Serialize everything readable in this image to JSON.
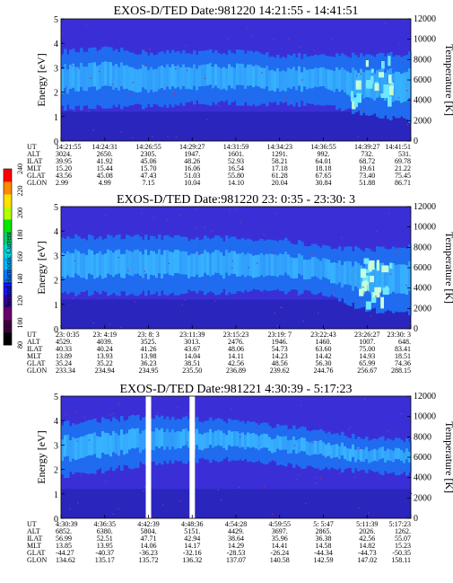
{
  "colors": {
    "deep": "#3a2fd6",
    "band": "#1f6cf0",
    "bright": "#38b4ff",
    "cyan": "#6fe8ff",
    "pale": "#c6ffd8",
    "dark_low": "#1e1ea8",
    "speck": "#8a3a8a",
    "colorbar": [
      "#000000",
      "#3a003a",
      "#6a006a",
      "#33009a",
      "#1515ff",
      "#0078ff",
      "#00b7ff",
      "#00d8d8",
      "#00cf6a",
      "#00e800",
      "#b4ff00",
      "#ffe000",
      "#ff8a00",
      "#ff0000"
    ]
  },
  "colorbar": {
    "label": "Second Harmonic Current",
    "ticks": [
      "240",
      "220",
      "200",
      "180",
      "160",
      "140",
      "120",
      "100",
      "80"
    ]
  },
  "chart_data": [
    {
      "type": "heatmap",
      "title": "EXOS-D/TED   Date:981220   14:21:55 - 14:41:51",
      "ylabel": "Energy [eV]",
      "y2label": "Temperature [K]",
      "ylim": [
        0,
        5
      ],
      "y2lim": [
        0,
        12000
      ],
      "yticks": [
        "0",
        "1",
        "2",
        "3",
        "4",
        "5"
      ],
      "y2ticks": [
        "0",
        "2000",
        "4000",
        "6000",
        "8000",
        "10000",
        "12000"
      ],
      "table_rows": [
        "UT",
        "ALT",
        "ILAT",
        "MLT",
        "GLAT",
        "GLON"
      ],
      "table_cols": [
        [
          "14:21:55",
          "3024.",
          "39.95",
          "15.20",
          "43.56",
          "2.99"
        ],
        [
          "14:24:31",
          "2650.",
          "41.92",
          "15.44",
          "45.08",
          "4.99"
        ],
        [
          "14:26:55",
          "2305.",
          "45.06",
          "15.70",
          "47.43",
          "7.15"
        ],
        [
          "14:29:27",
          "1947.",
          "48.26",
          "16.06",
          "51.03",
          "10.04"
        ],
        [
          "14:31:59",
          "1601.",
          "52.93",
          "16.54",
          "55.80",
          "14.10"
        ],
        [
          "14:34:23",
          "1291.",
          "58.21",
          "17.18",
          "61.28",
          "20.04"
        ],
        [
          "14:36:55",
          "992.",
          "64.01",
          "18.18",
          "67.65",
          "30.84"
        ],
        [
          "14:39:27",
          "732.",
          "68.72",
          "19.61",
          "73.40",
          "51.88"
        ],
        [
          "14:41:51",
          "531.",
          "69.78",
          "21.22",
          "75.45",
          "86.71"
        ]
      ],
      "band": {
        "center": [
          2.5,
          2.6,
          2.5,
          2.6,
          2.6,
          2.5,
          2.5,
          2.3,
          2.2
        ],
        "half_width": [
          0.9,
          0.9,
          0.85,
          0.8,
          0.8,
          0.75,
          0.7,
          1.0,
          1.1
        ]
      },
      "bright_patches": [
        [
          "14:39:27",
          2.6
        ]
      ]
    },
    {
      "type": "heatmap",
      "title": "EXOS-D/TED   Date:981220  23: 0:35 - 23:30: 3",
      "ylabel": "Energy [eV]",
      "y2label": "Temperature [K]",
      "ylim": [
        0,
        5
      ],
      "y2lim": [
        0,
        12000
      ],
      "yticks": [
        "0",
        "1",
        "2",
        "3",
        "4",
        "5"
      ],
      "y2ticks": [
        "0",
        "2000",
        "4000",
        "6000",
        "8000",
        "10000",
        "12000"
      ],
      "table_rows": [
        "UT",
        "ALT",
        "ILAT",
        "MLT",
        "GLAT",
        "GLON"
      ],
      "table_cols": [
        [
          "23: 0:35",
          "4529.",
          "40.33",
          "13.89",
          "35.24",
          "233.34"
        ],
        [
          "23: 4:19",
          "4039.",
          "40.24",
          "13.93",
          "35.22",
          "234.94"
        ],
        [
          "23: 8: 3",
          "3525.",
          "41.26",
          "13.98",
          "36.23",
          "234.95"
        ],
        [
          "23:11:39",
          "3013.",
          "43.67",
          "14.04",
          "38.51",
          "235.50"
        ],
        [
          "23:15:23",
          "2476.",
          "48.06",
          "14.11",
          "42.56",
          "236.89"
        ],
        [
          "23:19: 7",
          "1946.",
          "54.73",
          "14.23",
          "48.56",
          "239.62"
        ],
        [
          "23:22:43",
          "1460.",
          "63.60",
          "14.42",
          "56.30",
          "244.76"
        ],
        [
          "23:26:27",
          "1007.",
          "75.00",
          "14.93",
          "65.99",
          "256.67"
        ],
        [
          "23:30: 3",
          "648.",
          "83.41",
          "18.51",
          "74.36",
          "288.15"
        ]
      ],
      "band": {
        "center": [
          2.6,
          2.6,
          2.6,
          2.6,
          2.6,
          2.6,
          2.4,
          2.0,
          2.0
        ],
        "half_width": [
          0.9,
          0.9,
          0.9,
          0.85,
          0.85,
          0.8,
          0.7,
          1.0,
          1.1
        ]
      },
      "bright_patches": [
        [
          "23:26:27",
          2.0
        ]
      ]
    },
    {
      "type": "heatmap",
      "title": "EXOS-D/TED   Date:981221   4:30:39 - 5:17:23",
      "ylabel": "Energy [eV]",
      "y2label": "Temperature [K]",
      "ylim": [
        0,
        5
      ],
      "y2lim": [
        0,
        12000
      ],
      "yticks": [
        "0",
        "1",
        "2",
        "3",
        "4",
        "5"
      ],
      "y2ticks": [
        "0",
        "2000",
        "4000",
        "6000",
        "8000",
        "10000",
        "12000"
      ],
      "table_rows": [
        "UT",
        "ALT",
        "ILAT",
        "MLT",
        "GLAT",
        "GLON"
      ],
      "table_cols": [
        [
          "4:30:39",
          "6852.",
          "56.99",
          "13.85",
          "-44.27",
          "134.62"
        ],
        [
          "4:36:35",
          "6380.",
          "52.51",
          "13.95",
          "-40.37",
          "135.17"
        ],
        [
          "4:42:39",
          "5804.",
          "47.71",
          "14.06",
          "-36.23",
          "135.72"
        ],
        [
          "4:48:36",
          "5151.",
          "42.94",
          "14.17",
          "-32.16",
          "136.32"
        ],
        [
          "4:54:28",
          "4429.",
          "38.64",
          "14.29",
          "-28.53",
          "137.07"
        ],
        [
          "4:59:55",
          "3697.",
          "35.96",
          "14.41",
          "-26.24",
          "140.58"
        ],
        [
          "5: 5:47",
          "2865.",
          "36.38",
          "14.58",
          "-44.34",
          "142.59"
        ],
        [
          "5:11:39",
          "2026.",
          "42.56",
          "14.82",
          "-44.73",
          "147.02"
        ],
        [
          "5:17:23",
          "1262.",
          "55.07",
          "15.23",
          "-50.35",
          "158.11"
        ]
      ],
      "band": {
        "center": [
          2.8,
          3.0,
          3.2,
          3.2,
          3.2,
          3.0,
          2.8,
          2.6,
          2.5
        ],
        "half_width": [
          0.8,
          0.8,
          0.7,
          0.6,
          0.55,
          0.5,
          0.5,
          0.45,
          0.4
        ]
      },
      "data_gaps": [
        "4:42:39",
        "4:48:36"
      ]
    }
  ]
}
